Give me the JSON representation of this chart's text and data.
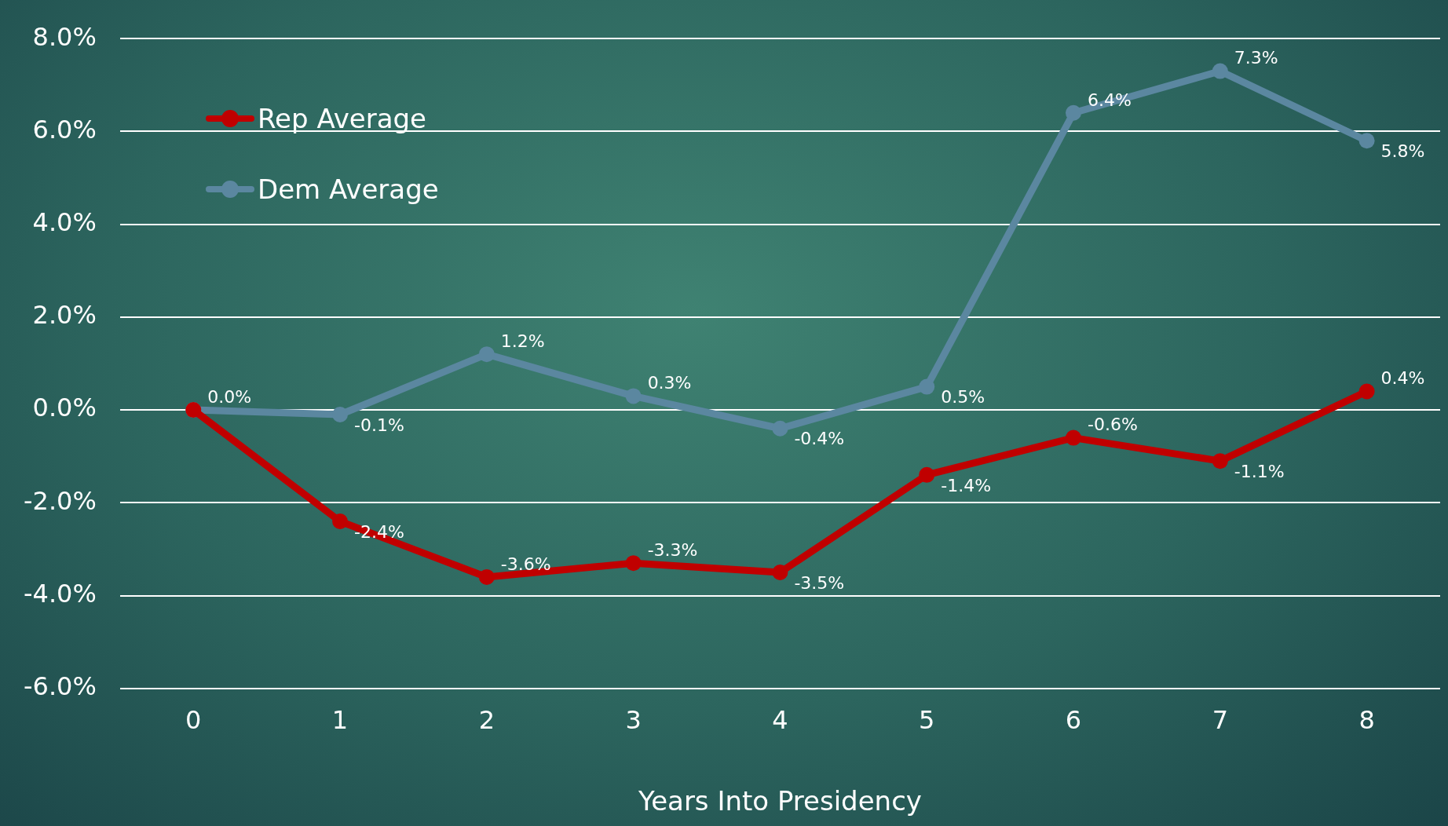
{
  "chart_data": {
    "type": "line",
    "xlabel": "Years Into Presidency",
    "categories": [
      "0",
      "1",
      "2",
      "3",
      "4",
      "5",
      "6",
      "7",
      "8"
    ],
    "series": [
      {
        "name": "Rep Average",
        "color": "#c00000",
        "values": [
          0.0,
          -2.4,
          -3.6,
          -3.3,
          -3.5,
          -1.4,
          -0.6,
          -1.1,
          0.4
        ],
        "value_labels": [
          null,
          "-2.4%",
          "-3.6%",
          "-3.3%",
          "-3.5%",
          "-1.4%",
          "-0.6%",
          "-1.1%",
          "0.4%"
        ]
      },
      {
        "name": "Dem Average",
        "color": "#5b87a0",
        "values": [
          0.0,
          -0.1,
          1.2,
          0.3,
          -0.4,
          0.5,
          6.4,
          7.3,
          5.8
        ],
        "value_labels": [
          "0.0%",
          "-0.1%",
          "1.2%",
          "0.3%",
          "-0.4%",
          "0.5%",
          "6.4%",
          "7.3%",
          "5.8%"
        ]
      }
    ],
    "ylim": [
      -6,
      8
    ],
    "yticks": [
      {
        "value": -6,
        "label": "-6.0%"
      },
      {
        "value": -4,
        "label": "-4.0%"
      },
      {
        "value": -2,
        "label": "-2.0%"
      },
      {
        "value": 0,
        "label": "0.0%"
      },
      {
        "value": 2,
        "label": "2.0%"
      },
      {
        "value": 4,
        "label": "4.0%"
      },
      {
        "value": 6,
        "label": "6.0%"
      },
      {
        "value": 8,
        "label": "8.0%"
      }
    ],
    "grid": "y",
    "legend": "top left",
    "marker": "circle",
    "line_style": "solid"
  }
}
